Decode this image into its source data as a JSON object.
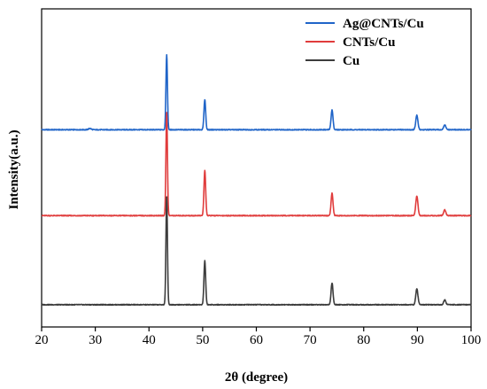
{
  "chart_data": {
    "type": "line",
    "xlabel": "2θ (degree)",
    "ylabel": "Intensity(a.u.)",
    "xlim": [
      20,
      100
    ],
    "x_ticks": [
      20,
      30,
      40,
      50,
      60,
      70,
      80,
      90,
      100
    ],
    "y_ticks_shown": false,
    "grid": false,
    "legend_position": "top-right",
    "series": [
      {
        "name": "Ag@CNTs/Cu",
        "color": "#1f64c8",
        "baseline": 0.62,
        "peaks": [
          {
            "x": 29.0,
            "height": 0.004,
            "width": 0.25
          },
          {
            "x": 43.3,
            "height": 0.235,
            "width": 0.14
          },
          {
            "x": 50.4,
            "height": 0.095,
            "width": 0.16
          },
          {
            "x": 74.1,
            "height": 0.062,
            "width": 0.18
          },
          {
            "x": 89.9,
            "height": 0.045,
            "width": 0.2
          },
          {
            "x": 95.1,
            "height": 0.015,
            "width": 0.2
          }
        ]
      },
      {
        "name": "CNTs/Cu",
        "color": "#e03c3c",
        "baseline": 0.35,
        "peaks": [
          {
            "x": 43.3,
            "height": 0.325,
            "width": 0.14
          },
          {
            "x": 50.4,
            "height": 0.142,
            "width": 0.16
          },
          {
            "x": 74.1,
            "height": 0.07,
            "width": 0.18
          },
          {
            "x": 89.9,
            "height": 0.062,
            "width": 0.2
          },
          {
            "x": 95.1,
            "height": 0.018,
            "width": 0.2
          }
        ]
      },
      {
        "name": "Cu",
        "color": "#3c3c3c",
        "baseline": 0.07,
        "peaks": [
          {
            "x": 43.3,
            "height": 0.34,
            "width": 0.14
          },
          {
            "x": 50.4,
            "height": 0.138,
            "width": 0.16
          },
          {
            "x": 74.1,
            "height": 0.068,
            "width": 0.18
          },
          {
            "x": 89.9,
            "height": 0.05,
            "width": 0.2
          },
          {
            "x": 95.1,
            "height": 0.015,
            "width": 0.2
          }
        ]
      }
    ]
  }
}
